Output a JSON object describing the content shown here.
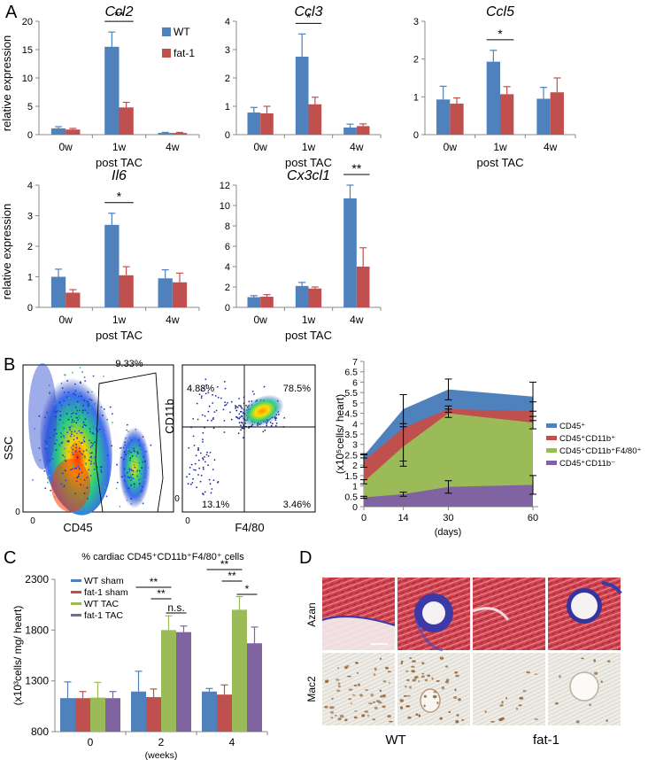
{
  "panels": {
    "A": {
      "letter": "A"
    },
    "B": {
      "letter": "B"
    },
    "C": {
      "letter": "C"
    },
    "D": {
      "letter": "D"
    }
  },
  "colors": {
    "wt": "#4f81bd",
    "fat1": "#c0504d",
    "wt_tac": "#9bbb59",
    "fat1_tac": "#8064a2",
    "cd45": "#4f81bd",
    "cd45_cd11b_pos": "#c0504d",
    "cd45_cd11b_f480": "#9bbb59",
    "cd45_cd11b_neg": "#8064a2"
  },
  "chart_data": [
    {
      "id": "ccl2",
      "type": "bar",
      "title": "Ccl2",
      "ylabel": "relative expression",
      "xlabel": "post TAC",
      "categories": [
        "0w",
        "1w",
        "4w"
      ],
      "ylim": [
        0,
        20
      ],
      "yticks": [
        0,
        5,
        10,
        15,
        20
      ],
      "series": [
        {
          "name": "WT",
          "values": [
            1.1,
            15.5,
            0.3
          ],
          "errors": [
            0.3,
            2.6,
            0.1
          ]
        },
        {
          "name": "fat-1",
          "values": [
            0.9,
            4.8,
            0.3
          ],
          "errors": [
            0.2,
            0.9,
            0.1
          ]
        }
      ],
      "significance": [
        {
          "category": "1w",
          "label": "**"
        }
      ]
    },
    {
      "id": "ccl3",
      "type": "bar",
      "title": "Ccl3",
      "xlabel": "post TAC",
      "categories": [
        "0w",
        "1w",
        "4w"
      ],
      "ylim": [
        0,
        4
      ],
      "yticks": [
        0,
        1,
        2,
        3,
        4
      ],
      "series": [
        {
          "name": "WT",
          "values": [
            0.78,
            2.75,
            0.25
          ],
          "errors": [
            0.18,
            0.8,
            0.12
          ]
        },
        {
          "name": "fat-1",
          "values": [
            0.75,
            1.07,
            0.3
          ],
          "errors": [
            0.25,
            0.25,
            0.08
          ]
        }
      ],
      "significance": [
        {
          "category": "1w",
          "label": "*"
        }
      ]
    },
    {
      "id": "ccl5",
      "type": "bar",
      "title": "Ccl5",
      "xlabel": "post TAC",
      "categories": [
        "0w",
        "1w",
        "4w"
      ],
      "ylim": [
        0,
        3
      ],
      "yticks": [
        0,
        1,
        2,
        3
      ],
      "series": [
        {
          "name": "WT",
          "values": [
            0.93,
            1.93,
            0.95
          ],
          "errors": [
            0.35,
            0.3,
            0.3
          ]
        },
        {
          "name": "fat-1",
          "values": [
            0.82,
            1.07,
            1.12
          ],
          "errors": [
            0.15,
            0.2,
            0.38
          ]
        }
      ],
      "significance": [
        {
          "category": "1w",
          "label": "*"
        }
      ]
    },
    {
      "id": "il6",
      "type": "bar",
      "title": "Il6",
      "ylabel": "relative expression",
      "xlabel": "post TAC",
      "categories": [
        "0w",
        "1w",
        "4w"
      ],
      "ylim": [
        0,
        4
      ],
      "yticks": [
        0,
        1,
        2,
        3,
        4
      ],
      "series": [
        {
          "name": "WT",
          "values": [
            1.0,
            2.7,
            0.95
          ],
          "errors": [
            0.25,
            0.38,
            0.28
          ]
        },
        {
          "name": "fat-1",
          "values": [
            0.48,
            1.05,
            0.82
          ],
          "errors": [
            0.1,
            0.28,
            0.3
          ]
        }
      ],
      "significance": [
        {
          "category": "1w",
          "label": "*"
        }
      ]
    },
    {
      "id": "cx3cl1",
      "type": "bar",
      "title": "Cx3cl1",
      "xlabel": "post TAC",
      "categories": [
        "0w",
        "1w",
        "4w"
      ],
      "ylim": [
        0,
        12
      ],
      "yticks": [
        0,
        2,
        4,
        6,
        8,
        10,
        12
      ],
      "series": [
        {
          "name": "WT",
          "values": [
            1.0,
            2.1,
            10.7
          ],
          "errors": [
            0.15,
            0.35,
            1.3
          ]
        },
        {
          "name": "fat-1",
          "values": [
            1.05,
            1.85,
            4.0
          ],
          "errors": [
            0.2,
            0.15,
            1.85
          ]
        }
      ],
      "significance": [
        {
          "category": "4w",
          "label": "**"
        }
      ]
    },
    {
      "id": "flow-cd45",
      "type": "scatter",
      "xlabel": "CD45",
      "ylabel": "SSC",
      "x_ticks": [
        "0"
      ],
      "y_ticks": [
        "0"
      ],
      "gates": [
        {
          "label": "9.33%"
        }
      ]
    },
    {
      "id": "flow-cd11b",
      "type": "scatter",
      "xlabel": "F4/80",
      "ylabel": "CD11b",
      "x_ticks": [
        "0"
      ],
      "y_ticks": [
        "0"
      ],
      "quadrants": {
        "top_left": "4.88%",
        "top_right": "78.5%",
        "bottom_left": "13.1%",
        "bottom_right": "3.46%"
      }
    },
    {
      "id": "infiltration",
      "type": "area",
      "xlabel": "(days)",
      "ylabel": "(x10⁵cells/ heart)",
      "x": [
        0,
        14,
        30,
        60
      ],
      "xlim": [
        0,
        60
      ],
      "xticks": [
        0,
        14,
        30,
        60
      ],
      "ylim": [
        0,
        7
      ],
      "yticks": [
        0,
        0.5,
        1,
        1.5,
        2,
        2.5,
        3,
        3.5,
        4,
        4.5,
        5,
        5.5,
        6,
        6.5,
        7
      ],
      "series": [
        {
          "name": "CD45⁺",
          "values": [
            2.45,
            4.7,
            5.65,
            5.3
          ],
          "errors": [
            0.1,
            0.7,
            0.5,
            0.7
          ]
        },
        {
          "name": "CD45⁺CD11b⁺",
          "values": [
            2.2,
            3.8,
            4.7,
            4.6
          ],
          "errors": [
            0.3,
            1.6,
            0.15,
            0.45
          ]
        },
        {
          "name": "CD45⁺CD11b⁺F4/80⁺",
          "values": [
            1.2,
            2.9,
            4.5,
            4.05
          ],
          "errors": [
            0.1,
            0.95,
            0.2,
            0.3
          ]
        },
        {
          "name": "CD45⁺CD11b⁻",
          "values": [
            0.45,
            0.6,
            0.95,
            1.05
          ],
          "errors": [
            0.05,
            0.1,
            0.3,
            0.45
          ]
        }
      ]
    },
    {
      "id": "cardiac",
      "type": "bar",
      "title": "% cardiac CD45⁺CD11b⁺F4/80⁺ cells",
      "ylabel": "(x10³cells/ mg/ heart)",
      "xlabel": "(weeks)",
      "categories": [
        "0",
        "2",
        "4"
      ],
      "ylim": [
        800,
        2300
      ],
      "yticks": [
        800,
        1300,
        1800,
        2300
      ],
      "series": [
        {
          "name": "WT sham",
          "values": [
            1130,
            1195,
            1195
          ],
          "errors": [
            160,
            200,
            30
          ]
        },
        {
          "name": "fat-1 sham",
          "values": [
            1130,
            1140,
            1165
          ],
          "errors": [
            65,
            80,
            95
          ]
        },
        {
          "name": "WT TAC",
          "values": [
            1135,
            1800,
            2000
          ],
          "errors": [
            150,
            140,
            130
          ]
        },
        {
          "name": "fat-1 TAC",
          "values": [
            1130,
            1780,
            1670
          ],
          "errors": [
            65,
            60,
            160
          ]
        }
      ],
      "significance": [
        {
          "label": "**"
        },
        {
          "label": "**"
        },
        {
          "label": "n.s."
        },
        {
          "label": "**"
        },
        {
          "label": "**"
        },
        {
          "label": "*"
        }
      ]
    }
  ],
  "histology": {
    "row_labels": [
      "Azan",
      "Mac2"
    ],
    "group_labels": [
      "WT",
      "fat-1"
    ]
  }
}
